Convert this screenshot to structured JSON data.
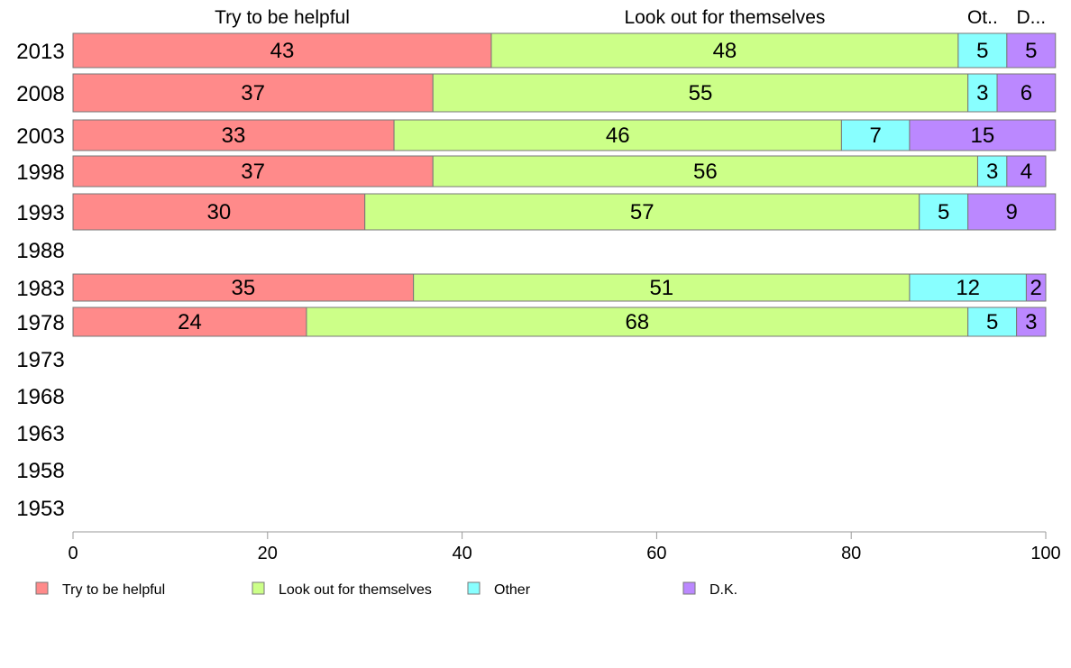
{
  "chart_data": {
    "type": "bar",
    "orientation": "horizontal",
    "stacked": true,
    "categories": [
      "2013",
      "2008",
      "2003",
      "1998",
      "1993",
      "1988",
      "1983",
      "1978",
      "1973",
      "1968",
      "1963",
      "1958",
      "1953"
    ],
    "series": [
      {
        "name": "Try to be helpful",
        "header": "Try to be helpful",
        "color": "#ff8a8a",
        "values": [
          43,
          37,
          33,
          37,
          30,
          null,
          35,
          24,
          null,
          null,
          null,
          null,
          null
        ]
      },
      {
        "name": "Look out for themselves",
        "header": "Look out for themselves",
        "color": "#ccff88",
        "values": [
          48,
          55,
          46,
          56,
          57,
          null,
          51,
          68,
          null,
          null,
          null,
          null,
          null
        ]
      },
      {
        "name": "Other",
        "header": "Ot..",
        "color": "#88ffff",
        "values": [
          5,
          3,
          7,
          3,
          5,
          null,
          12,
          5,
          null,
          null,
          null,
          null,
          null
        ]
      },
      {
        "name": "D.K.",
        "header": "D...",
        "color": "#bb88ff",
        "values": [
          5,
          6,
          15,
          4,
          9,
          null,
          2,
          3,
          null,
          null,
          null,
          null,
          null
        ]
      }
    ],
    "xlim": [
      0,
      100
    ],
    "xticks": [
      "0",
      "20",
      "40",
      "60",
      "80",
      "100"
    ],
    "xlabel": "",
    "ylabel": "",
    "title": "",
    "grid": false,
    "legend_position": "bottom"
  }
}
